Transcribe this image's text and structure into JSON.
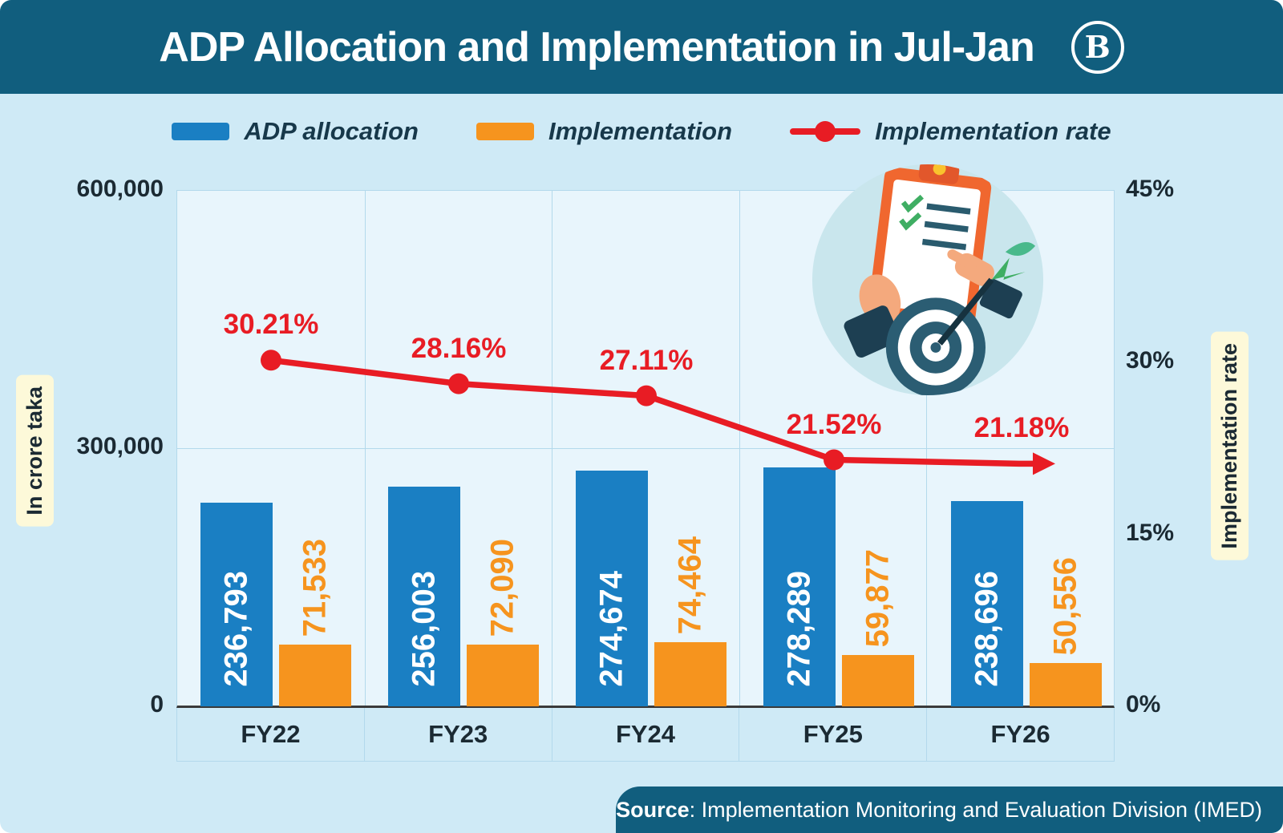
{
  "header": {
    "title": "ADP Allocation and Implementation in Jul-Jan",
    "logo_text": "B"
  },
  "legend": [
    {
      "label": "ADP allocation",
      "color": "#1a7fc3"
    },
    {
      "label": "Implementation",
      "color": "#f6941e"
    },
    {
      "label": "Implementation rate",
      "color": "#e81c24"
    }
  ],
  "axes": {
    "left_title": "In crore taka",
    "right_title": "Implementation rate",
    "left_ticks": [
      "600,000",
      "300,000",
      "0"
    ],
    "right_ticks": [
      "45%",
      "30%",
      "15%",
      "0%"
    ]
  },
  "chart_data": {
    "type": "bar",
    "categories": [
      "FY22",
      "FY23",
      "FY24",
      "FY25",
      "FY26"
    ],
    "series": [
      {
        "name": "ADP allocation",
        "type": "bar",
        "color": "#1a7fc3",
        "values": [
          236793,
          256003,
          274674,
          278289,
          238696
        ],
        "labels": [
          "236,793",
          "256,003",
          "274,674",
          "278,289",
          "238,696"
        ]
      },
      {
        "name": "Implementation",
        "type": "bar",
        "color": "#f6941e",
        "values": [
          71533,
          72090,
          74464,
          59877,
          50556
        ],
        "labels": [
          "71,533",
          "72,090",
          "74,464",
          "59,877",
          "50,556"
        ]
      },
      {
        "name": "Implementation rate",
        "type": "line",
        "color": "#e81c24",
        "values": [
          30.21,
          28.16,
          27.11,
          21.52,
          21.18
        ],
        "labels": [
          "30.21%",
          "28.16%",
          "27.11%",
          "21.52%",
          "21.18%"
        ]
      }
    ],
    "left_axis": {
      "label": "In crore taka",
      "min": 0,
      "max": 600000
    },
    "right_axis": {
      "label": "Implementation rate",
      "min": 0,
      "max": 45,
      "unit": "%"
    },
    "title": "ADP Allocation and Implementation in Jul-Jan",
    "legend_position": "top",
    "grid": "light-blue column separators, midline at 300,000"
  },
  "footer": {
    "source_label": "Source",
    "source_text": ": Implementation Monitoring and Evaluation Division (IMED)"
  },
  "colors": {
    "header_teal": "#115e7e",
    "page_bg": "#cfeaf6",
    "plot_bg": "#e8f5fc",
    "bar_blue": "#1a7fc3",
    "bar_orange": "#f6941e",
    "line_red": "#e81c24",
    "axis_label_bg": "#fdf9d9",
    "text_dark": "#1b2a33"
  }
}
